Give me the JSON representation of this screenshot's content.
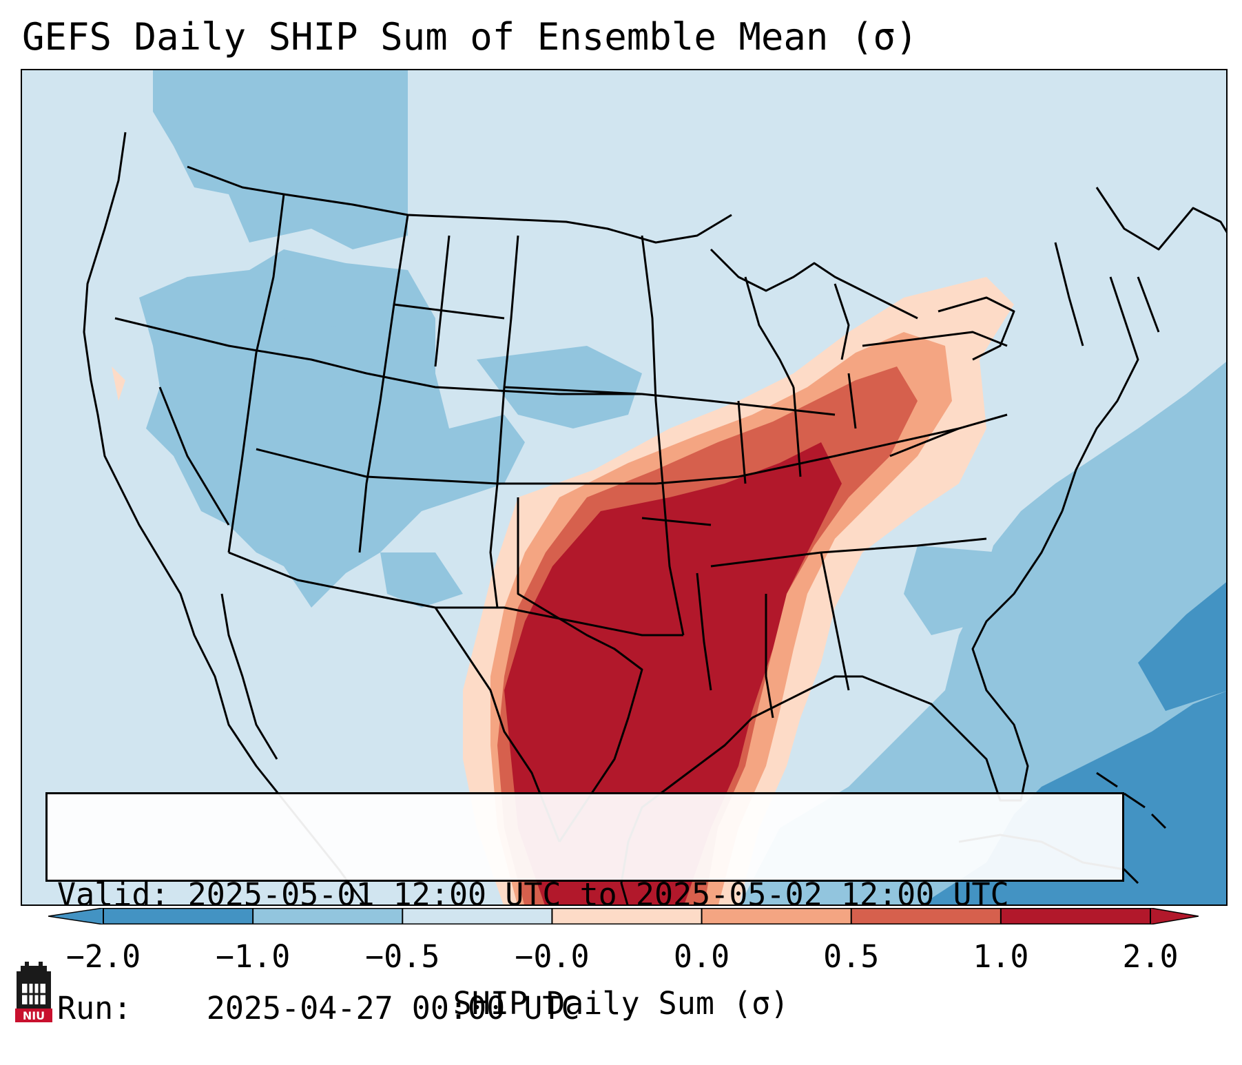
{
  "title": "GEFS Daily SHIP Sum of Ensemble Mean (σ)",
  "info": {
    "valid_label": "Valid:",
    "valid_value": "2025-05-01 12:00 UTC to 2025-05-02 12:00 UTC",
    "run_label": "Run:",
    "run_value": "2025-04-27 00:00 UTC"
  },
  "colorbar": {
    "label": "SHIP Daily Sum (σ)",
    "ticks": [
      "−2.0",
      "−1.0",
      "−0.5",
      "−0.0",
      "0.0",
      "0.5",
      "1.0",
      "2.0"
    ],
    "colors": [
      "#4393c3",
      "#92c5de",
      "#d1e5f0",
      "#f7f7f7",
      "#fddbc7",
      "#f4a582",
      "#d6604d",
      "#b2182b"
    ],
    "extend": "both"
  },
  "logo": {
    "text": "NIU"
  },
  "legend_colors": {
    "strong_negative": "#4393c3",
    "negative": "#92c5de",
    "slight_negative": "#d1e5f0",
    "slight_positive": "#fddbc7",
    "positive": "#f4a582",
    "strong_positive": "#d6604d",
    "extreme": "#b2182b"
  }
}
